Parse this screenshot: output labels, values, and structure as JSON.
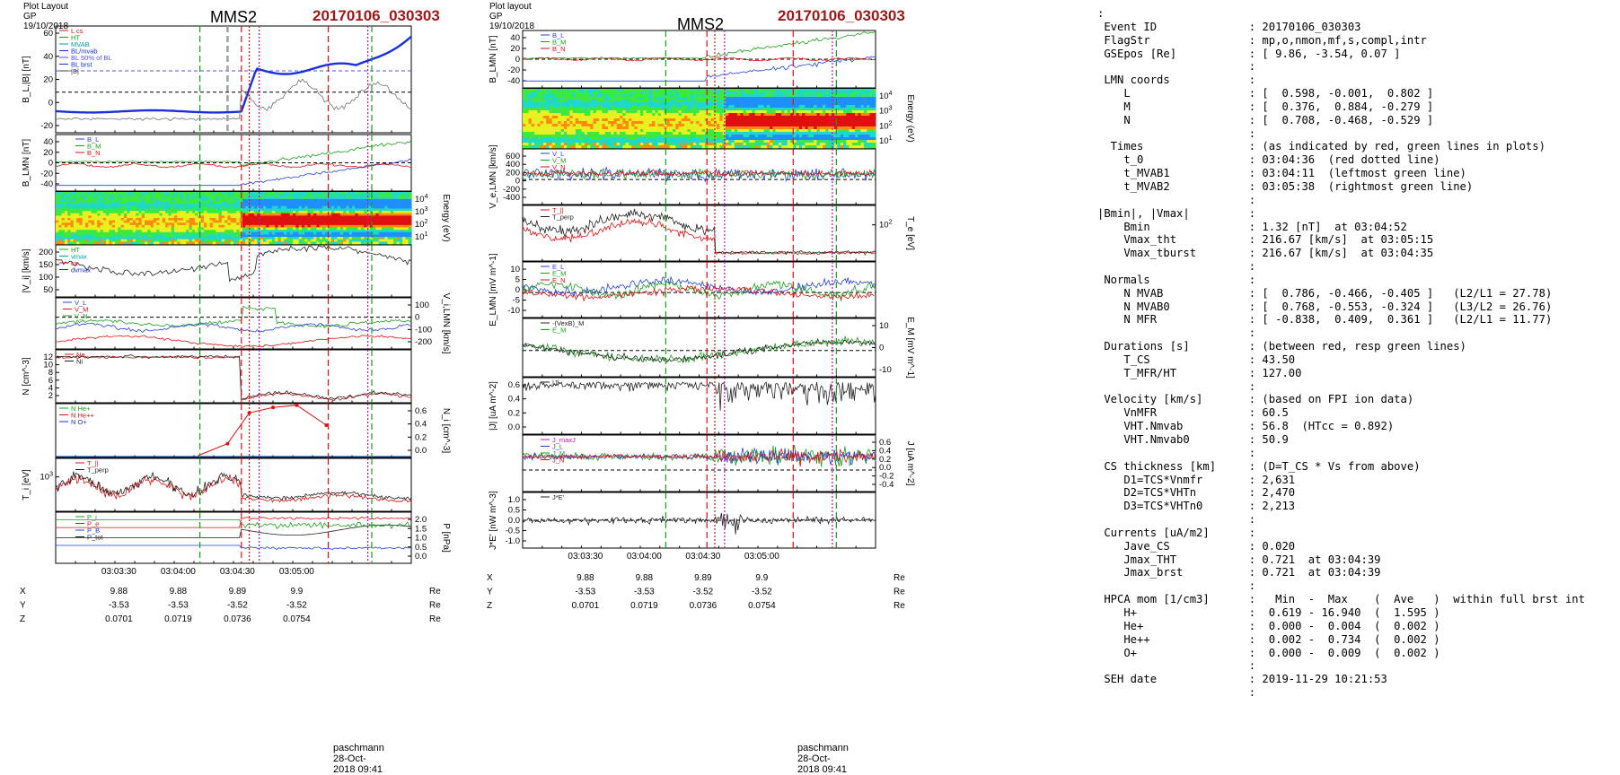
{
  "left": {
    "header": "Plot Layout GP 19/10/2018",
    "spacecraft": "MMS2",
    "event": "20170106_030303",
    "footer": "paschmann 28-Oct-2018 09:41"
  },
  "middle": {
    "header": "Plot layout GP 19/10/2018",
    "spacecraft": "MMS2",
    "event": "20170106_030303",
    "footer": "paschmann 28-Oct-2018 09:41"
  },
  "eph": {
    "time_ticks": [
      "03:03:30",
      "03:04:00",
      "03:04:30",
      "03:05:00"
    ],
    "rows": [
      {
        "label": "X",
        "values": [
          "9.88",
          "9.88",
          "9.89",
          "9.9"
        ],
        "unit": "Re"
      },
      {
        "label": "Y",
        "values": [
          "-3.53",
          "-3.53",
          "-3.52",
          "-3.52"
        ],
        "unit": "Re"
      },
      {
        "label": "Z",
        "values": [
          "0.0701",
          "0.0719",
          "0.0736",
          "0.0754"
        ],
        "unit": "Re"
      }
    ]
  },
  "info_lines": [
    ":",
    " Event ID              : 20170106_030303",
    " FlagStr               : mp,o,nmon,mf,s,compl,intr",
    " GSEpos [Re]           : [ 9.86, -3.54, 0.07 ]",
    "                       :",
    " LMN coords            :",
    "    L                  : [  0.598, -0.001,  0.802 ]",
    "    M                  : [  0.376,  0.884, -0.279 ]",
    "    N                  : [  0.708, -0.468, -0.529 ]",
    "                       :",
    "  Times                : (as indicated by red, green lines in plots)",
    "    t_0                : 03:04:36  (red dotted line)",
    "    t_MVAB1            : 03:04:11  (leftmost green line)",
    "    t_MVAB2            : 03:05:38  (rightmost green line)",
    "                       :",
    "|Bmin|, |Vmax|         :",
    "    Bmin               : 1.32 [nT]  at 03:04:52",
    "    Vmax_tht           : 216.67 [km/s]  at 03:05:15",
    "    Vmax_tburst        : 216.67 [km/s]  at 03:04:35",
    "                       :",
    " Normals               :",
    "    N MVAB             : [  0.786, -0.466, -0.405 ]   (L2/L1 = 27.78)",
    "    N MVAB0            : [  0.768, -0.553, -0.324 ]   (L3/L2 = 26.76)",
    "    N MFR              : [ -0.838,  0.409,  0.361 ]   (L2/L1 = 11.77)",
    "                       :",
    " Durations [s]         : (between red, resp green lines)",
    "    T_CS               : 43.50",
    "    T_MFR/HT           : 127.00",
    "                       :",
    " Velocity [km/s]       : (based on FPI ion data)",
    "    VnMFR              : 60.5",
    "    VHT.Nmvab          : 56.8  (HTcc = 0.892)",
    "    VHT.Nmvab0         : 50.9",
    "                       :",
    " CS thickness [km]     : (D=T_CS * Vs from above)",
    "    D1=TCS*Vnmfr       : 2,631",
    "    D2=TCS*VHTn        : 2,470",
    "    D3=TCS*VHTn0       : 2,213",
    "                       :",
    " Currents [uA/m2]      :",
    "    Jave_CS            : 0.020",
    "    Jmax_THT           : 0.721  at 03:04:39",
    "    Jmax_brst          : 0.721  at 03:04:39",
    "                       :",
    " HPCA mom [1/cm3]      :   Min  -  Max    (  Ave   )  within full brst int",
    "    H+                 :  0.619 - 16.940  (  1.595 )",
    "    He+                :  0.000 -  0.004  (  0.002 )",
    "    He++               :  0.002 -  0.734  (  0.002 )",
    "    O+                 :  0.000 -  0.009  (  0.002 )",
    "                       :",
    " SEH date              : 2019-11-29 10:21:53",
    "                       :"
  ],
  "chart_data": [
    {
      "type": "line",
      "id": "left-b-field",
      "ylabel": "B_L,|B| [nT]",
      "yticks": [
        "60",
        "40",
        "20",
        "0",
        "-20"
      ],
      "legend": [
        "L cs",
        "HT",
        "MVAB",
        "BL/mvab",
        "BL 50% of BL",
        "BL brst",
        "|B|"
      ]
    },
    {
      "type": "line",
      "id": "left-b-lmn",
      "ylabel": "B_LMN [nT]",
      "yticks": [
        "40",
        "20",
        "0",
        "-20",
        "-40"
      ],
      "series": [
        {
          "name": "B_L"
        },
        {
          "name": "B_M"
        },
        {
          "name": "B_N"
        }
      ]
    },
    {
      "type": "heatmap",
      "id": "left-ion-spectrogram",
      "ylabel": "Energy (eV)",
      "yticks": [
        "10^4",
        "10^3",
        "10^2",
        "10^1"
      ]
    },
    {
      "type": "line",
      "id": "left-ion-speed",
      "ylabel": "|V_i| [km/s]",
      "yticks": [
        "200",
        "150",
        "100",
        "50"
      ],
      "legend": [
        "HT",
        "vmax",
        "cs",
        "dvmax"
      ]
    },
    {
      "type": "line",
      "id": "left-ion-vlmn",
      "ylabel": "V_i,LMN [km/s]",
      "yticks": [
        "100",
        "0",
        "-100",
        "-200"
      ],
      "series": [
        {
          "name": "V_L"
        },
        {
          "name": "V_M"
        },
        {
          "name": "V_N"
        }
      ]
    },
    {
      "type": "line",
      "id": "left-density",
      "ylabel": "N [cm^-3]",
      "yticks": [
        "12",
        "10",
        "8",
        "6",
        "4",
        "2"
      ],
      "series": [
        {
          "name": "Ne"
        },
        {
          "name": "Ni"
        }
      ]
    },
    {
      "type": "scatter",
      "id": "left-hpca-density",
      "ylabel": "N_i [cm^-3]",
      "yticks": [
        "0.6",
        "0.4",
        "0.2",
        "0.0"
      ],
      "series": [
        {
          "name": "N He+"
        },
        {
          "name": "N He++",
          "x": [
            "03:04:25",
            "03:04:36",
            "03:04:48",
            "03:05:00",
            "03:05:15"
          ],
          "values": [
            0.18,
            0.58,
            0.65,
            0.68,
            0.42
          ]
        },
        {
          "name": "N O+"
        }
      ]
    },
    {
      "type": "line",
      "id": "left-ion-temp",
      "ylabel": "T_i [eV]",
      "yticks": [
        "10^3"
      ],
      "series": [
        {
          "name": "T_||"
        },
        {
          "name": "T_perp"
        }
      ]
    },
    {
      "type": "line",
      "id": "left-pressure",
      "ylabel": "P [nPa]",
      "yticks": [
        "2.0",
        "1.5",
        "1.0",
        "0.5",
        "0.0"
      ],
      "series": [
        {
          "name": "P_i"
        },
        {
          "name": "P_e"
        },
        {
          "name": "P_B"
        },
        {
          "name": "P_tot"
        }
      ]
    },
    {
      "type": "line",
      "id": "mid-b-lmn",
      "ylabel": "B_LMN [nT]",
      "yticks": [
        "40",
        "20",
        "0",
        "-20",
        "-40"
      ],
      "series": [
        {
          "name": "B_L"
        },
        {
          "name": "B_M"
        },
        {
          "name": "B_N"
        }
      ]
    },
    {
      "type": "heatmap",
      "id": "mid-electron-spectrogram",
      "ylabel": "Energy (eV)",
      "yticks": [
        "10^4",
        "10^3",
        "10^2",
        "10^1"
      ]
    },
    {
      "type": "line",
      "id": "mid-electron-velocity",
      "ylabel": "V_e,LMN [km/s]",
      "yticks": [
        "600",
        "400",
        "200",
        "0",
        "-200",
        "-400"
      ],
      "series": [
        {
          "name": "V_L"
        },
        {
          "name": "V_M"
        },
        {
          "name": "V_N"
        }
      ]
    },
    {
      "type": "line",
      "id": "mid-electron-temp",
      "ylabel": "T_e [eV]",
      "yticks": [
        "10^2"
      ],
      "series": [
        {
          "name": "T_||"
        },
        {
          "name": "T_perp"
        }
      ]
    },
    {
      "type": "line",
      "id": "mid-e-field",
      "ylabel": "E_LMN [mV m^-1]",
      "yticks": [
        "10",
        "5",
        "0",
        "-5",
        "-10"
      ],
      "series": [
        {
          "name": "E_L"
        },
        {
          "name": "E_M"
        },
        {
          "name": "E_N"
        }
      ]
    },
    {
      "type": "line",
      "id": "mid-em",
      "ylabel": "E_M [mV m^-1]",
      "yticks": [
        "10",
        "0",
        "-10"
      ],
      "series": [
        {
          "name": "-(VexB)_M"
        },
        {
          "name": "E_M"
        }
      ]
    },
    {
      "type": "line",
      "id": "mid-current-mag",
      "ylabel": "|J| [uA m^-2]",
      "yticks": [
        "0.6",
        "0.4",
        "0.2",
        "0.0"
      ],
      "series": [
        {
          "name": "|J|"
        }
      ]
    },
    {
      "type": "line",
      "id": "mid-current-lmn",
      "ylabel": "J [uA m^-2]",
      "yticks": [
        "0.6",
        "0.4",
        "0.2",
        "0.0",
        "-0.2",
        "-0.4"
      ],
      "series": [
        {
          "name": "J_L"
        },
        {
          "name": "J_M"
        },
        {
          "name": "J_N"
        },
        {
          "name": "J_maxJ"
        }
      ]
    },
    {
      "type": "line",
      "id": "mid-jdote",
      "ylabel": "J*E' [nW m^-3]",
      "yticks": [
        "1.0",
        "0.5",
        "0.0",
        "-0.5",
        "-1.0"
      ],
      "series": [
        {
          "name": "J*E'"
        }
      ]
    }
  ]
}
